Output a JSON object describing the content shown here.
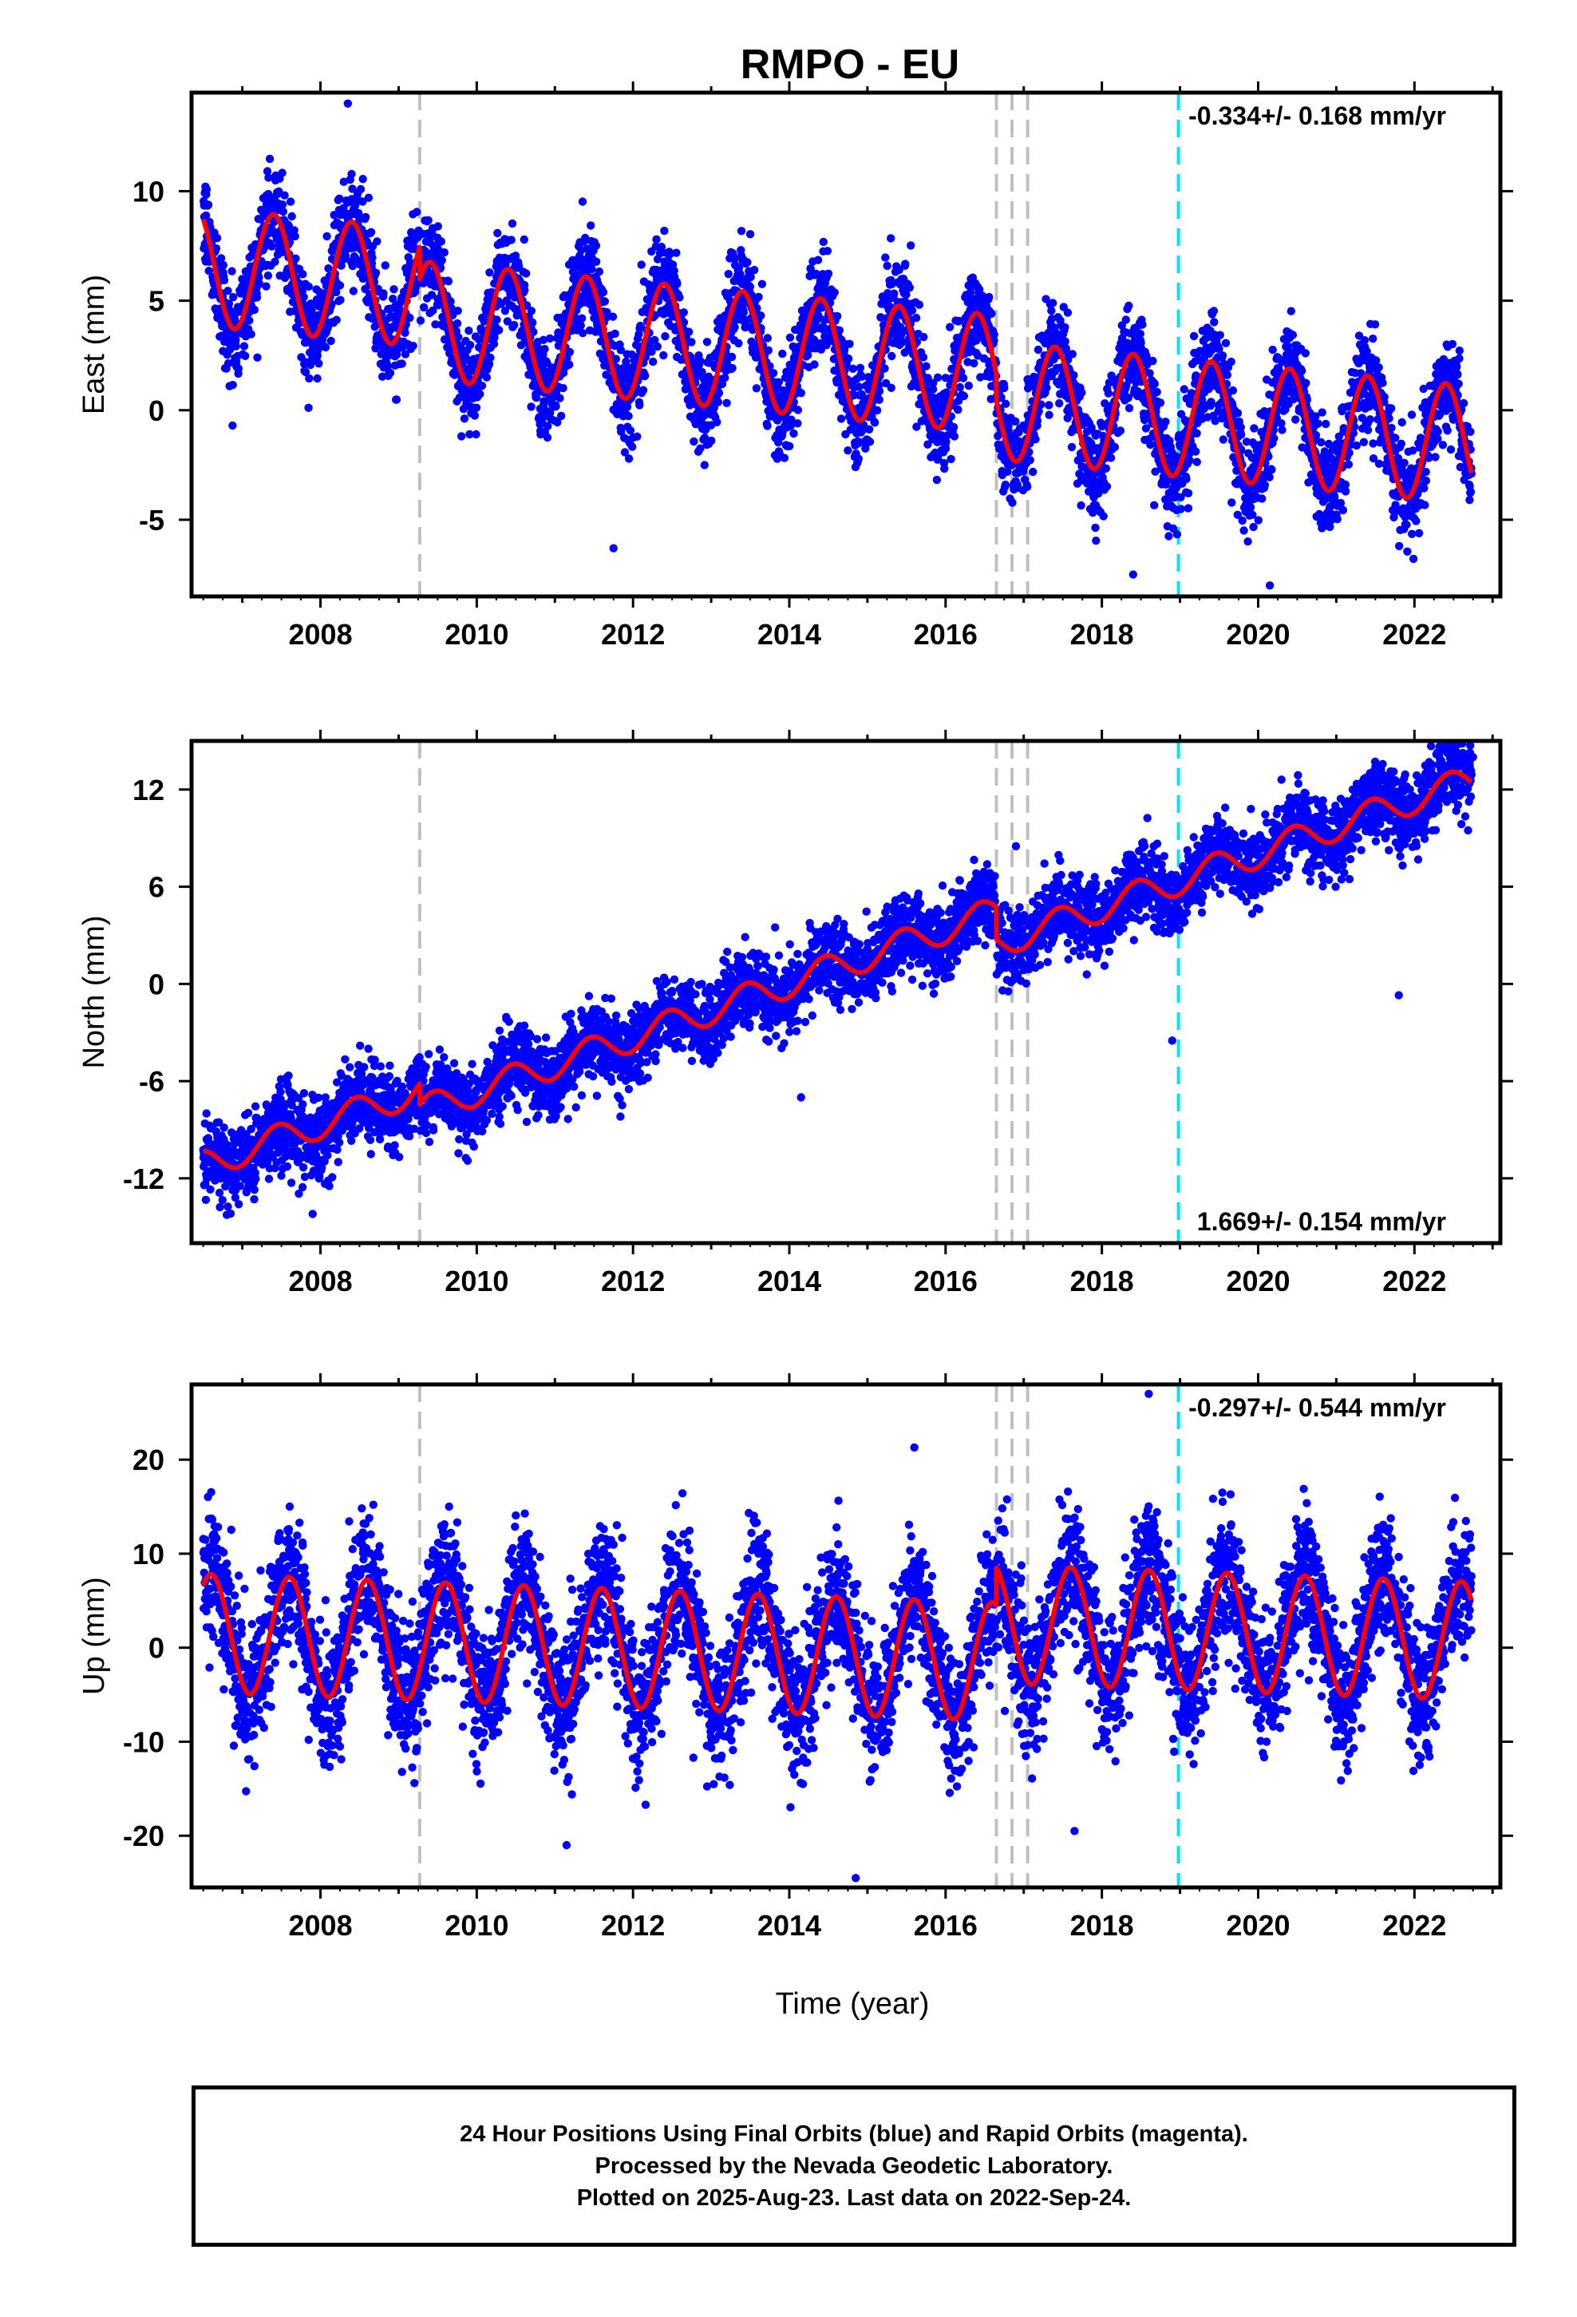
{
  "chart_data": {
    "title": "RMPO - EU",
    "type": "scatter",
    "xlabel": "Time (year)",
    "xlim": [
      2006.35,
      2023.1
    ],
    "xticks": [
      "2008",
      "2010",
      "2012",
      "2014",
      "2016",
      "2018",
      "2020",
      "2022"
    ],
    "data_start": 2006.5,
    "data_end": 2022.73,
    "equipment_changes": [
      2009.27,
      2016.65,
      2016.85,
      2017.05
    ],
    "cyan_marker": 2018.98,
    "colors": {
      "final_orbits": "#0000ff",
      "rapid_orbits": "#ff00ff",
      "model": "#ff0000",
      "equipment_lines": "#c0c0c0",
      "cyan_line": "#00e5ff"
    },
    "panels": [
      {
        "key": "east",
        "ylabel": "East (mm)",
        "ylim": [
          -8.5,
          14.5
        ],
        "yticks": [
          "10",
          "5",
          "0",
          "-5"
        ],
        "ytick_values": [
          10,
          5,
          0,
          -5
        ],
        "rate": "-0.334+/- 0.168 mm/yr",
        "rate_position": "top-right",
        "trend": {
          "slope": -0.334,
          "anchor_year": 2006.6,
          "anchor_value": 6.5
        },
        "offsets": [
          {
            "year": 2009.27,
            "delta": -1.5
          },
          {
            "year": 2016.65,
            "delta": -1.2
          }
        ],
        "amplitude": 2.7,
        "phase_year": 0.4,
        "noise": 1.1,
        "outliers": [
          [
            2008.35,
            14.0
          ],
          [
            2018.4,
            -7.5
          ],
          [
            2020.15,
            -8.0
          ],
          [
            2011.75,
            -6.3
          ],
          [
            2012.3,
            7.8
          ]
        ]
      },
      {
        "key": "north",
        "ylabel": "North (mm)",
        "ylim": [
          -16,
          15
        ],
        "yticks": [
          "12",
          "6",
          "0",
          "-6",
          "-12"
        ],
        "ytick_values": [
          12,
          6,
          0,
          -6,
          -12
        ],
        "rate": "1.669+/- 0.154 mm/yr",
        "rate_position": "bottom-right",
        "trend": {
          "slope": 1.669,
          "anchor_year": 2006.6,
          "anchor_value": -11.0
        },
        "offsets": [
          {
            "year": 2009.27,
            "delta": -1.3
          },
          {
            "year": 2016.65,
            "delta": -2.0
          }
        ],
        "amplitude": 0.9,
        "phase_year": 0.45,
        "noise": 1.15,
        "outliers": [
          [
            2022.75,
            14.0
          ],
          [
            2018.9,
            -3.5
          ],
          [
            2021.8,
            -0.7
          ],
          [
            2016.9,
            8.5
          ],
          [
            2014.15,
            -7.0
          ],
          [
            2007.9,
            -14.2
          ]
        ]
      },
      {
        "key": "up",
        "ylabel": "Up (mm)",
        "ylim": [
          -25.5,
          28
        ],
        "yticks": [
          "20",
          "10",
          "0",
          "-10",
          "-20"
        ],
        "ytick_values": [
          20,
          10,
          0,
          -10,
          -20
        ],
        "rate": "-0.297+/- 0.544 mm/yr",
        "rate_position": "top-right",
        "trend": {
          "slope": -0.297,
          "anchor_year": 2006.6,
          "anchor_value": 1.5
        },
        "offsets": [
          {
            "year": 2016.65,
            "delta": 4.0
          }
        ],
        "amplitude": 6.3,
        "phase_year": 0.6,
        "noise": 3.6,
        "outliers": [
          [
            2014.85,
            -24.5
          ],
          [
            2018.6,
            27.0
          ],
          [
            2017.65,
            -19.5
          ],
          [
            2011.15,
            -21.0
          ],
          [
            2015.6,
            21.3
          ]
        ]
      }
    ]
  },
  "footer": {
    "line1": "24 Hour Positions Using Final Orbits (blue) and Rapid Orbits (magenta).",
    "line2": "Processed by the Nevada Geodetic Laboratory.",
    "line3": "Plotted on 2025-Aug-23. Last data on 2022-Sep-24."
  }
}
